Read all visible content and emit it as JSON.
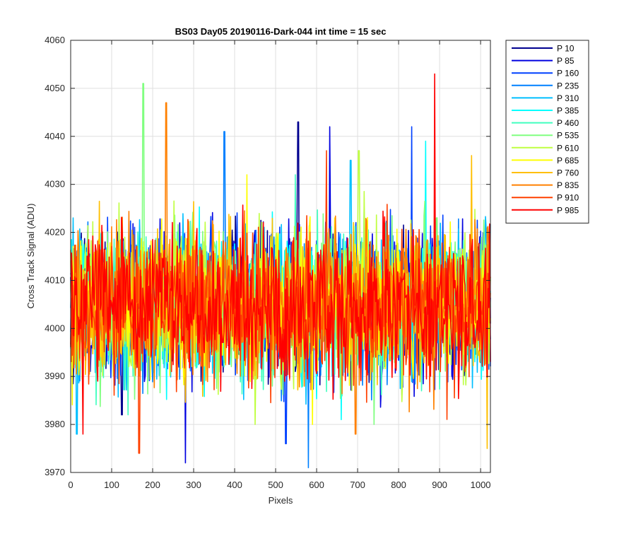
{
  "chart_data": {
    "type": "line",
    "title": "BS03 Day05 20190116-Dark-044 int time = 15 sec",
    "xlabel": "Pixels",
    "ylabel": "Cross Track Signal (ADU)",
    "xlim": [
      0,
      1024
    ],
    "ylim": [
      3970,
      4060
    ],
    "xticks": [
      0,
      100,
      200,
      300,
      400,
      500,
      600,
      700,
      800,
      900,
      1000
    ],
    "yticks": [
      3970,
      3980,
      3990,
      4000,
      4010,
      4020,
      4030,
      4040,
      4050,
      4060
    ],
    "grid": true,
    "legend_position": "outside-top-right",
    "signal_mean": 4005,
    "series": [
      {
        "name": "P 10",
        "color": "#00008f",
        "peak": {
          "x": 555,
          "y": 4043
        },
        "trough": {
          "x": 125,
          "y": 3982
        }
      },
      {
        "name": "P 85",
        "color": "#0000e0",
        "peak": {
          "x": 632,
          "y": 4042
        },
        "trough": {
          "x": 280,
          "y": 3972
        }
      },
      {
        "name": "P 160",
        "color": "#0040ff",
        "peak": {
          "x": 832,
          "y": 4042
        },
        "trough": {
          "x": 525,
          "y": 3976
        }
      },
      {
        "name": "P 235",
        "color": "#0080ff",
        "peak": {
          "x": 375,
          "y": 4041
        },
        "trough": {
          "x": 580,
          "y": 3971
        }
      },
      {
        "name": "P 310",
        "color": "#00bfff",
        "peak": {
          "x": 683,
          "y": 4035
        },
        "trough": {
          "x": 15,
          "y": 3978
        }
      },
      {
        "name": "P 385",
        "color": "#00ffff",
        "peak": {
          "x": 866,
          "y": 4039
        },
        "trough": {
          "x": 660,
          "y": 3981
        }
      },
      {
        "name": "P 460",
        "color": "#40ffbf",
        "peak": {
          "x": 548,
          "y": 4032
        },
        "trough": {
          "x": 140,
          "y": 3982
        }
      },
      {
        "name": "P 535",
        "color": "#80ff80",
        "peak": {
          "x": 177,
          "y": 4051
        },
        "trough": {
          "x": 740,
          "y": 3980
        }
      },
      {
        "name": "P 610",
        "color": "#bfff40",
        "peak": {
          "x": 703,
          "y": 4037
        },
        "trough": {
          "x": 450,
          "y": 3980
        }
      },
      {
        "name": "P 685",
        "color": "#ffff00",
        "peak": {
          "x": 430,
          "y": 4032
        },
        "trough": {
          "x": 590,
          "y": 3980
        }
      },
      {
        "name": "P 760",
        "color": "#ffbf00",
        "peak": {
          "x": 978,
          "y": 4036
        },
        "trough": {
          "x": 1016,
          "y": 3975
        }
      },
      {
        "name": "P 835",
        "color": "#ff8000",
        "peak": {
          "x": 233,
          "y": 4047
        },
        "trough": {
          "x": 695,
          "y": 3978
        }
      },
      {
        "name": "P 910",
        "color": "#ff4000",
        "peak": {
          "x": 624,
          "y": 4037
        },
        "trough": {
          "x": 167,
          "y": 3974
        }
      },
      {
        "name": "P 985",
        "color": "#ff0000",
        "peak": {
          "x": 888,
          "y": 4053
        },
        "trough": {
          "x": 30,
          "y": 3978
        }
      }
    ]
  }
}
